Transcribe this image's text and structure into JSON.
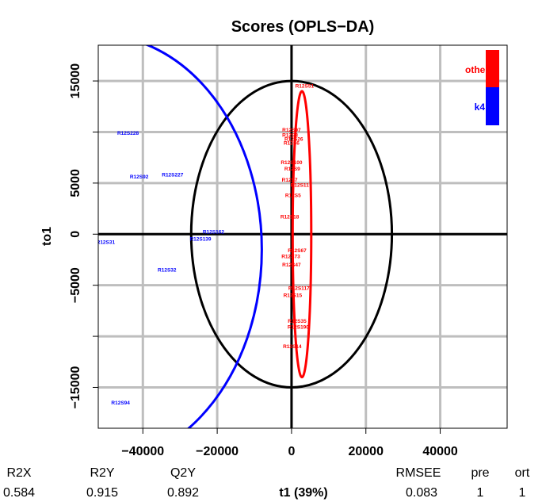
{
  "chart_data": {
    "type": "scatter",
    "title": "Scores (OPLS−DA)",
    "xlabel": "t1 (39%)",
    "ylabel": "to1",
    "xlim": [
      -52000,
      58000
    ],
    "ylim": [
      -19000,
      18500
    ],
    "x_ticks": [
      -40000,
      -20000,
      0,
      20000,
      40000
    ],
    "x_tick_labels": [
      "−40000",
      "−20000",
      "0",
      "20000",
      "40000"
    ],
    "y_ticks": [
      -15000,
      -10000,
      -5000,
      0,
      5000,
      10000,
      15000
    ],
    "y_tick_labels": [
      "−15000",
      "",
      "−5000",
      "0",
      "5000",
      "",
      "15000"
    ],
    "grid": true,
    "colors": {
      "other": "#ff0000",
      "k4": "#0000ff",
      "axis": "#000000",
      "grid": "#bebebe"
    },
    "legend": {
      "position": "top-right",
      "entries": [
        "other",
        "k4"
      ]
    },
    "hotelling_ellipse": {
      "cx": 0,
      "cy": 0,
      "rx": 27000,
      "ry": 15000
    },
    "series": [
      {
        "name": "k4",
        "points": [
          {
            "label": "R12S228",
            "x": -44000,
            "y": 9900
          },
          {
            "label": "R12S92",
            "x": -41000,
            "y": 5600
          },
          {
            "label": "R12S227",
            "x": -32000,
            "y": 5800
          },
          {
            "label": "R12S162",
            "x": -21000,
            "y": 200
          },
          {
            "label": "R12S139",
            "x": -24500,
            "y": -500
          },
          {
            "label": "R12S31",
            "x": -50000,
            "y": -800
          },
          {
            "label": "R12S32",
            "x": -33500,
            "y": -3500
          },
          {
            "label": "R12S94",
            "x": -46000,
            "y": -16500
          }
        ],
        "ellipse": {
          "cx": -52000,
          "cy": -1500,
          "rx": 44000,
          "ry": 21000
        }
      },
      {
        "name": "other",
        "points": [
          {
            "label": "R12S51",
            "x": 3500,
            "y": 14500
          },
          {
            "label": "R12S97",
            "x": 0,
            "y": 10200
          },
          {
            "label": "R12S3",
            "x": -400,
            "y": 9700
          },
          {
            "label": "R12S26",
            "x": 600,
            "y": 9300
          },
          {
            "label": "R12S6",
            "x": 0,
            "y": 8900
          },
          {
            "label": "R12S100",
            "x": 0,
            "y": 7000
          },
          {
            "label": "R12S9",
            "x": 200,
            "y": 6400
          },
          {
            "label": "R12S7",
            "x": -500,
            "y": 5300
          },
          {
            "label": "R12S11",
            "x": 2200,
            "y": 4800
          },
          {
            "label": "R12S5",
            "x": 400,
            "y": 3800
          },
          {
            "label": "R12S18",
            "x": -500,
            "y": 1700
          },
          {
            "label": "R12S67",
            "x": 1500,
            "y": -1600
          },
          {
            "label": "R12S73",
            "x": -200,
            "y": -2200
          },
          {
            "label": "R12S47",
            "x": 0,
            "y": -3000
          },
          {
            "label": "R12S117",
            "x": 2000,
            "y": -5300
          },
          {
            "label": "R12S15",
            "x": 300,
            "y": -6000
          },
          {
            "label": "R12S35",
            "x": 1500,
            "y": -8500
          },
          {
            "label": "R12S190",
            "x": 1800,
            "y": -9100
          },
          {
            "label": "R12S14",
            "x": 200,
            "y": -11000
          }
        ],
        "ellipse": {
          "cx": 2800,
          "cy": 0,
          "rx": 2500,
          "ry": 14000
        }
      }
    ],
    "stats": {
      "headers": [
        "R2X",
        "R2Y",
        "Q2Y",
        "RMSEE",
        "pre",
        "ort"
      ],
      "values": [
        "0.584",
        "0.915",
        "0.892",
        "0.083",
        "1",
        "1"
      ]
    }
  }
}
